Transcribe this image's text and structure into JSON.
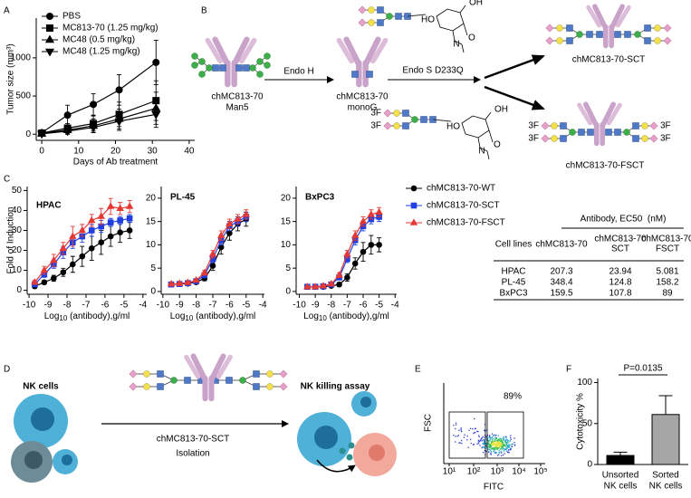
{
  "panel_labels": [
    "A",
    "B",
    "C",
    "D",
    "E",
    "F"
  ],
  "chart_data": [
    {
      "type": "line",
      "xlabel": "Days of Ab treatment",
      "ylabel": "Tumor size (mm³)",
      "x": [
        0,
        7,
        14,
        21,
        31
      ],
      "xlim": [
        -1.5,
        41.5
      ],
      "xticks": [
        0,
        10,
        20,
        30,
        40
      ],
      "ylim": [
        -80,
        1520
      ],
      "yticks": [
        0,
        500,
        1000
      ],
      "legend": "top-left",
      "marker_size": 3.5,
      "series": [
        {
          "name": "PBS",
          "color": "#000000",
          "marker": "circle",
          "values": [
            20,
            250,
            390,
            580,
            940
          ],
          "errors": [
            30,
            130,
            140,
            200,
            290
          ]
        },
        {
          "name": "MC813-70 (1.25 mg/kg)",
          "color": "#000000",
          "marker": "square",
          "values": [
            15,
            80,
            140,
            260,
            440
          ],
          "errors": [
            20,
            60,
            100,
            160,
            260
          ]
        },
        {
          "name": "MC48 (0.5 mg/kg)",
          "color": "#000000",
          "marker": "triangle-up",
          "values": [
            10,
            55,
            110,
            200,
            340
          ],
          "errors": [
            15,
            50,
            90,
            130,
            210
          ]
        },
        {
          "name": "MC48 (1.25 mg/kg)",
          "color": "#000000",
          "marker": "triangle-down",
          "values": [
            5,
            40,
            90,
            170,
            260
          ],
          "errors": [
            15,
            40,
            70,
            120,
            170
          ]
        }
      ]
    },
    {
      "type": "line",
      "title": "HPAC",
      "ylabel": "Fold of Induction",
      "xlabel": {
        "base": "Log",
        "sub": "10",
        "rest": " (antibody),g/ml"
      },
      "x": [
        -9.7,
        -9.2,
        -8.7,
        -8.2,
        -7.7,
        -7.2,
        -6.7,
        -6.2,
        -5.7,
        -5.2,
        -4.7
      ],
      "xlim": [
        -10.1,
        -3.8
      ],
      "xticks": [
        -10,
        -9,
        -8,
        -7,
        -6,
        -5,
        -4
      ],
      "ylim": [
        -2,
        52
      ],
      "yticks": [
        0,
        10,
        20,
        30,
        40,
        50
      ],
      "legend": "outside-right",
      "marker_size": 2.8,
      "series": [
        {
          "name": "chMC813-70-WT",
          "color": "#000000",
          "marker": "circle",
          "values": [
            2,
            4,
            6,
            9,
            13,
            17,
            21,
            24,
            27,
            29,
            30
          ],
          "errors": [
            1,
            1,
            1.5,
            2,
            4,
            5,
            6,
            6,
            5,
            5,
            4
          ]
        },
        {
          "name": "chMC813-70-SCT",
          "color": "#1f3fe0",
          "marker": "square",
          "values": [
            3,
            8,
            13,
            19,
            24,
            27,
            30,
            32,
            34,
            35,
            36
          ],
          "errors": [
            1,
            1.5,
            2,
            3,
            3,
            3,
            3,
            3,
            2,
            2,
            2
          ]
        },
        {
          "name": "chMC813-70-FSCT",
          "color": "#e53935",
          "marker": "triangle-up",
          "values": [
            4,
            10,
            15,
            21,
            27,
            30,
            35,
            37,
            42,
            41,
            42
          ],
          "errors": [
            1,
            2,
            3,
            3,
            5,
            3,
            3,
            4,
            4,
            3,
            3
          ]
        }
      ]
    },
    {
      "type": "line",
      "title": "PL-45",
      "xlabel": {
        "base": "Log",
        "sub": "10",
        "rest": " (antibody),g/ml"
      },
      "x": [
        -9.5,
        -9,
        -8.5,
        -8,
        -7.5,
        -7,
        -6.5,
        -6,
        -5.5,
        -5
      ],
      "xlim": [
        -10.1,
        -3.9
      ],
      "xticks": [
        -10,
        -9,
        -8,
        -7,
        -6,
        -5,
        -4
      ],
      "ylim": [
        -0.6,
        22.5
      ],
      "yticks": [
        0,
        5,
        10,
        15,
        20
      ],
      "marker_size": 2.8,
      "series": [
        {
          "color": "#000000",
          "marker": "circle",
          "values": [
            1.5,
            1.6,
            1.7,
            2,
            2.8,
            5.5,
            9.5,
            12.5,
            14.5,
            15.5
          ],
          "errors": [
            0.2,
            0.2,
            0.2,
            0.3,
            0.5,
            1,
            1.5,
            1.5,
            1.5,
            1.5
          ]
        },
        {
          "color": "#1f3fe0",
          "marker": "square",
          "values": [
            1.5,
            1.6,
            1.8,
            2.2,
            3.5,
            7,
            11,
            14,
            15,
            16
          ],
          "errors": [
            0.2,
            0.2,
            0.2,
            0.3,
            0.5,
            0.8,
            1,
            1,
            1,
            1
          ]
        },
        {
          "color": "#e53935",
          "marker": "triangle-up",
          "values": [
            1.6,
            1.7,
            1.9,
            2.4,
            4,
            8,
            12,
            14.5,
            15.5,
            16.5
          ],
          "errors": [
            0.2,
            0.2,
            0.2,
            0.3,
            0.5,
            0.8,
            1,
            1,
            1,
            1
          ]
        }
      ]
    },
    {
      "type": "line",
      "title": "BxPC3",
      "xlabel": {
        "base": "Log",
        "sub": "10",
        "rest": " (antibody),g/ml"
      },
      "x": [
        -9.5,
        -9,
        -8.5,
        -8,
        -7.5,
        -7,
        -6.5,
        -6,
        -5.5,
        -5
      ],
      "xlim": [
        -10.2,
        -3.9
      ],
      "xticks": [
        -10,
        -9,
        -8,
        -7,
        -6,
        -5,
        -4
      ],
      "ylim": [
        -0.6,
        22.5
      ],
      "yticks": [
        0,
        5,
        10,
        15,
        20
      ],
      "marker_size": 2.8,
      "series": [
        {
          "color": "#000000",
          "marker": "circle",
          "values": [
            1,
            1,
            1,
            1.2,
            1.5,
            3,
            6,
            8.5,
            10,
            10
          ],
          "errors": [
            0.2,
            0.2,
            0.2,
            0.3,
            0.4,
            0.8,
            1.2,
            2,
            2,
            1.5
          ]
        },
        {
          "color": "#1f3fe0",
          "marker": "square",
          "values": [
            1,
            1,
            1.1,
            1.5,
            3,
            7,
            11,
            14,
            15.5,
            16
          ],
          "errors": [
            0.2,
            0.2,
            0.2,
            0.3,
            0.5,
            0.8,
            1,
            1,
            1,
            1
          ]
        },
        {
          "color": "#e53935",
          "marker": "triangle-up",
          "values": [
            1,
            1,
            1.2,
            1.6,
            3.5,
            8,
            12,
            15,
            16.5,
            17
          ],
          "errors": [
            0.2,
            0.2,
            0.2,
            0.3,
            0.5,
            0.8,
            1,
            1,
            1,
            1
          ]
        }
      ]
    },
    {
      "type": "bar",
      "ylabel": "Cytotoxicity %",
      "categories": [
        [
          "Unsorted",
          "NK cells"
        ],
        [
          "Sorted",
          "NK cells"
        ]
      ],
      "values": [
        11,
        61
      ],
      "errors": [
        4,
        23
      ],
      "colors": [
        "#000000",
        "#a6a6a6"
      ],
      "ylim": [
        0,
        105
      ],
      "yticks": [
        0,
        50,
        100
      ],
      "annotation": "P=0.0135"
    }
  ],
  "diagram_b": {
    "start_label": [
      "chMC813-70",
      "Man5"
    ],
    "step1": "Endo H",
    "mid_label": [
      "chMC813-70",
      "monoG"
    ],
    "step2": "Endo S D233Q",
    "product_sct": "chMC813-70-SCT",
    "product_fsct": "chMC813-70-FSCT",
    "fucose_tag": "3F",
    "ring_labels": [
      "OH",
      "HO",
      "O",
      "N"
    ]
  },
  "table": {
    "header": "Antibody, EC50  (nM)",
    "columns": [
      [
        "Cell lines"
      ],
      [
        "chMC813-70"
      ],
      [
        "chMC813-70",
        "SCT"
      ],
      [
        "chMC813-70",
        "FSCT"
      ]
    ],
    "rows": [
      [
        "HPAC",
        207.3,
        23.94,
        5.081
      ],
      [
        "PL-45",
        348.4,
        124.8,
        158.2
      ],
      [
        "BxPC3",
        159.5,
        107.8,
        89
      ]
    ]
  },
  "diagram_d": {
    "left_label": "NK cells",
    "arrow_label": [
      "chMC813-70-SCT",
      "Isolation"
    ],
    "right_label": "NK killing assay"
  },
  "flow_e": {
    "gate_percent": "89%",
    "y_label": "FSC",
    "x_label": "FITC",
    "x_ticks": [
      "10¹",
      "10²",
      "10³",
      "10⁴",
      "10⁵"
    ]
  }
}
